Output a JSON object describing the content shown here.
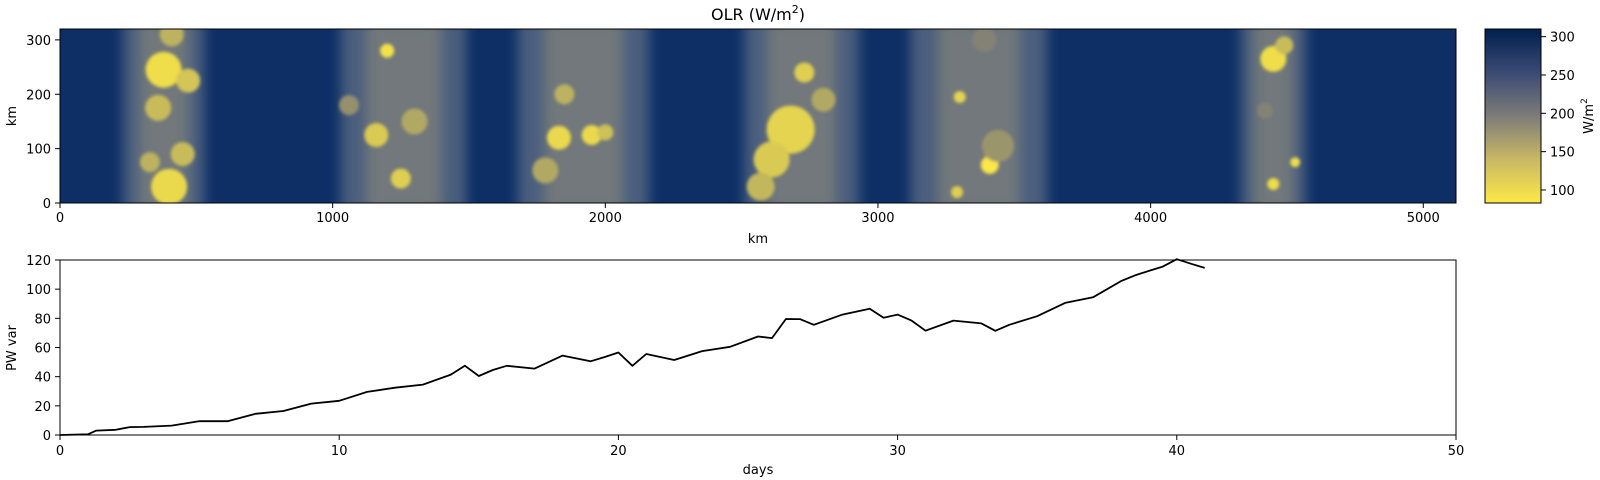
{
  "chart_data": [
    {
      "type": "heatmap",
      "title": "OLR (W/m$^2$)",
      "title_text": "OLR (W/m",
      "title_sup": "2",
      "title_end": ")",
      "xlabel": "km",
      "ylabel": "km",
      "xlim": [
        0,
        5120
      ],
      "ylim": [
        0,
        320
      ],
      "xticks": [
        0,
        1000,
        2000,
        3000,
        4000,
        5000
      ],
      "yticks": [
        0,
        100,
        200,
        300
      ],
      "colorbar": {
        "label": "W/m",
        "label_sup": "2",
        "ticks": [
          100,
          150,
          200,
          250,
          300
        ],
        "range": [
          83,
          310
        ],
        "colormap": "cividis (reversed)",
        "low_color": "#fde945",
        "mid_color": "#7d7c78",
        "high_color": "#00204d"
      },
      "convective_bands_km": [
        {
          "center": 380,
          "width": 300
        },
        {
          "center": 1260,
          "width": 460
        },
        {
          "center": 1920,
          "width": 480
        },
        {
          "center": 2720,
          "width": 420
        },
        {
          "center": 3370,
          "width": 500
        },
        {
          "center": 4450,
          "width": 240
        }
      ],
      "cells": [
        {
          "x": 380,
          "y": 245,
          "r": 18,
          "olr": 95
        },
        {
          "x": 470,
          "y": 225,
          "r": 12,
          "olr": 120
        },
        {
          "x": 360,
          "y": 175,
          "r": 13,
          "olr": 130
        },
        {
          "x": 330,
          "y": 75,
          "r": 10,
          "olr": 140
        },
        {
          "x": 450,
          "y": 90,
          "r": 12,
          "olr": 130
        },
        {
          "x": 400,
          "y": 30,
          "r": 18,
          "olr": 100
        },
        {
          "x": 410,
          "y": 310,
          "r": 12,
          "olr": 140
        },
        {
          "x": 1200,
          "y": 280,
          "r": 7,
          "olr": 90
        },
        {
          "x": 1160,
          "y": 125,
          "r": 12,
          "olr": 115
        },
        {
          "x": 1250,
          "y": 45,
          "r": 10,
          "olr": 110
        },
        {
          "x": 1300,
          "y": 150,
          "r": 13,
          "olr": 150
        },
        {
          "x": 1060,
          "y": 180,
          "r": 10,
          "olr": 175
        },
        {
          "x": 1830,
          "y": 120,
          "r": 12,
          "olr": 100
        },
        {
          "x": 1950,
          "y": 125,
          "r": 10,
          "olr": 100
        },
        {
          "x": 2000,
          "y": 130,
          "r": 8,
          "olr": 125
        },
        {
          "x": 1850,
          "y": 200,
          "r": 10,
          "olr": 140
        },
        {
          "x": 1780,
          "y": 60,
          "r": 13,
          "olr": 150
        },
        {
          "x": 2680,
          "y": 135,
          "r": 24,
          "olr": 105
        },
        {
          "x": 2610,
          "y": 80,
          "r": 18,
          "olr": 115
        },
        {
          "x": 2730,
          "y": 240,
          "r": 10,
          "olr": 110
        },
        {
          "x": 2570,
          "y": 30,
          "r": 14,
          "olr": 135
        },
        {
          "x": 2800,
          "y": 190,
          "r": 12,
          "olr": 150
        },
        {
          "x": 3300,
          "y": 195,
          "r": 6,
          "olr": 105
        },
        {
          "x": 3410,
          "y": 70,
          "r": 9,
          "olr": 85
        },
        {
          "x": 3440,
          "y": 105,
          "r": 16,
          "olr": 170
        },
        {
          "x": 3290,
          "y": 20,
          "r": 6,
          "olr": 110
        },
        {
          "x": 3390,
          "y": 300,
          "r": 12,
          "olr": 190
        },
        {
          "x": 4450,
          "y": 265,
          "r": 13,
          "olr": 95
        },
        {
          "x": 4490,
          "y": 290,
          "r": 9,
          "olr": 130
        },
        {
          "x": 4530,
          "y": 75,
          "r": 5,
          "olr": 95
        },
        {
          "x": 4450,
          "y": 35,
          "r": 6,
          "olr": 95
        },
        {
          "x": 4420,
          "y": 170,
          "r": 8,
          "olr": 190
        }
      ]
    },
    {
      "type": "line",
      "title": "",
      "xlabel": "days",
      "ylabel": "PW var",
      "xlim": [
        0,
        50
      ],
      "ylim": [
        0,
        120
      ],
      "xticks": [
        0,
        10,
        20,
        30,
        40,
        50
      ],
      "yticks": [
        0,
        20,
        40,
        60,
        80,
        100,
        120
      ],
      "line_color": "#000000",
      "series": [
        {
          "x": [
            0,
            1,
            1.3,
            2,
            2.5,
            3,
            4,
            5,
            6,
            7,
            8,
            9,
            10,
            11,
            12,
            13,
            14,
            14.5,
            15,
            15.5,
            16,
            17,
            18,
            19,
            19.5,
            20,
            20.5,
            21,
            22,
            23,
            24,
            25,
            25.5,
            26,
            26.5,
            27,
            28,
            29,
            29.5,
            30,
            30.5,
            31,
            32,
            33,
            33.5,
            34,
            35,
            36,
            37,
            38,
            38.5,
            39,
            39.5,
            40,
            40.5,
            41
          ],
          "y": [
            0,
            0.5,
            3,
            3,
            6,
            5,
            7,
            9,
            10,
            14,
            17,
            21,
            24,
            29,
            33,
            34,
            42,
            47,
            41,
            44,
            48,
            45,
            55,
            50,
            54,
            56,
            48,
            55,
            52,
            57,
            61,
            67,
            67,
            79,
            80,
            75,
            83,
            86,
            81,
            82,
            79,
            71,
            79,
            76,
            72,
            75,
            82,
            90,
            95,
            105,
            110,
            112,
            116,
            120,
            118,
            114
          ]
        }
      ]
    }
  ]
}
